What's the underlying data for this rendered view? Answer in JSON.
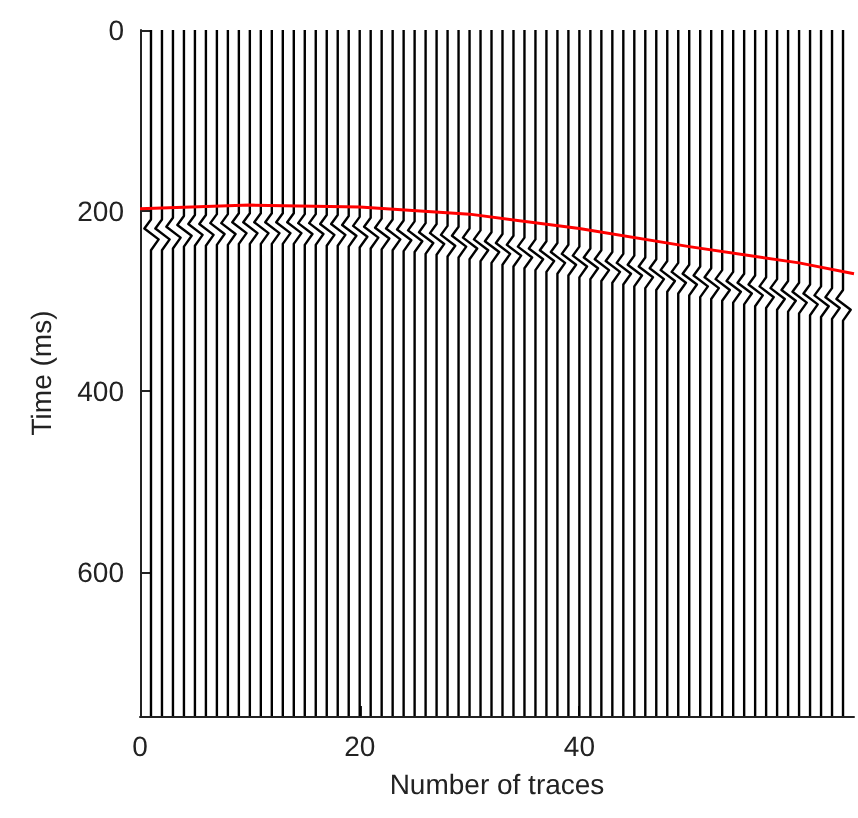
{
  "chart_data": {
    "type": "line",
    "xlabel": "Number of traces",
    "ylabel": "Time (ms)",
    "xlim": [
      0,
      65
    ],
    "xticks": [
      0,
      20,
      40
    ],
    "ylim": [
      760,
      0
    ],
    "yticks": [
      0,
      200,
      400,
      600
    ],
    "series": [
      {
        "color": "#000000",
        "x": [
          1,
          1,
          0.4,
          1.7,
          1,
          1
        ],
        "values": [
          0,
          210,
          220,
          232,
          244,
          760
        ]
      },
      {
        "color": "#000000",
        "x": [
          2,
          2,
          1.4,
          2.7,
          2,
          2
        ],
        "values": [
          0,
          210,
          220,
          232,
          244,
          760
        ]
      },
      {
        "color": "#000000",
        "x": [
          3,
          3,
          2.4,
          3.7,
          3,
          3
        ],
        "values": [
          0,
          208,
          218,
          230,
          242,
          760
        ]
      },
      {
        "color": "#000000",
        "x": [
          4,
          4,
          3.4,
          4.7,
          4,
          4
        ],
        "values": [
          0,
          206,
          216,
          228,
          240,
          760
        ]
      },
      {
        "color": "#000000",
        "x": [
          5,
          5,
          4.4,
          5.7,
          5,
          5
        ],
        "values": [
          0,
          205,
          215,
          227,
          239,
          760
        ]
      },
      {
        "color": "#000000",
        "x": [
          6,
          6,
          5.4,
          6.7,
          6,
          6
        ],
        "values": [
          0,
          205,
          215,
          227,
          239,
          760
        ]
      },
      {
        "color": "#000000",
        "x": [
          7,
          7,
          6.4,
          7.7,
          7,
          7
        ],
        "values": [
          0,
          204,
          214,
          226,
          238,
          760
        ]
      },
      {
        "color": "#000000",
        "x": [
          8,
          8,
          7.4,
          8.7,
          8,
          8
        ],
        "values": [
          0,
          204,
          214,
          226,
          238,
          760
        ]
      },
      {
        "color": "#000000",
        "x": [
          9,
          9,
          8.4,
          9.7,
          9,
          9
        ],
        "values": [
          0,
          203,
          213,
          225,
          237,
          760
        ]
      },
      {
        "color": "#000000",
        "x": [
          10,
          10,
          9.4,
          10.7,
          10,
          10
        ],
        "values": [
          0,
          203,
          213,
          225,
          237,
          760
        ]
      },
      {
        "color": "#000000",
        "x": [
          11,
          11,
          10.4,
          11.7,
          11,
          11
        ],
        "values": [
          0,
          203,
          213,
          225,
          237,
          760
        ]
      },
      {
        "color": "#000000",
        "x": [
          12,
          12,
          11.4,
          12.7,
          12,
          12
        ],
        "values": [
          0,
          203,
          213,
          225,
          237,
          760
        ]
      },
      {
        "color": "#000000",
        "x": [
          13,
          13,
          12.4,
          13.7,
          13,
          13
        ],
        "values": [
          0,
          203,
          213,
          225,
          237,
          760
        ]
      },
      {
        "color": "#000000",
        "x": [
          14,
          14,
          13.4,
          14.7,
          14,
          14
        ],
        "values": [
          0,
          203,
          213,
          225,
          237,
          760
        ]
      },
      {
        "color": "#000000",
        "x": [
          15,
          15,
          14.4,
          15.7,
          15,
          15
        ],
        "values": [
          0,
          204,
          214,
          226,
          238,
          760
        ]
      },
      {
        "color": "#000000",
        "x": [
          16,
          16,
          15.4,
          16.7,
          16,
          16
        ],
        "values": [
          0,
          204,
          214,
          226,
          238,
          760
        ]
      },
      {
        "color": "#000000",
        "x": [
          17,
          17,
          16.4,
          17.7,
          17,
          17
        ],
        "values": [
          0,
          205,
          215,
          227,
          239,
          760
        ]
      },
      {
        "color": "#000000",
        "x": [
          18,
          18,
          17.4,
          18.7,
          18,
          18
        ],
        "values": [
          0,
          205,
          215,
          227,
          239,
          760
        ]
      },
      {
        "color": "#000000",
        "x": [
          19,
          19,
          18.4,
          19.7,
          19,
          19
        ],
        "values": [
          0,
          206,
          216,
          228,
          240,
          760
        ]
      },
      {
        "color": "#000000",
        "x": [
          20,
          20,
          19.4,
          20.7,
          20,
          20
        ],
        "values": [
          0,
          207,
          217,
          229,
          241,
          760
        ]
      },
      {
        "color": "#000000",
        "x": [
          21,
          21,
          20.4,
          21.7,
          21,
          21
        ],
        "values": [
          0,
          208,
          218,
          230,
          242,
          760
        ]
      },
      {
        "color": "#000000",
        "x": [
          22,
          22,
          21.4,
          22.7,
          22,
          22
        ],
        "values": [
          0,
          209,
          219,
          231,
          243,
          760
        ]
      },
      {
        "color": "#000000",
        "x": [
          23,
          23,
          22.4,
          23.7,
          23,
          23
        ],
        "values": [
          0,
          210,
          220,
          232,
          244,
          760
        ]
      },
      {
        "color": "#000000",
        "x": [
          24,
          24,
          23.4,
          24.7,
          24,
          24
        ],
        "values": [
          0,
          211,
          221,
          233,
          245,
          760
        ]
      },
      {
        "color": "#000000",
        "x": [
          25,
          25,
          24.4,
          25.7,
          25,
          25
        ],
        "values": [
          0,
          212,
          222,
          234,
          246,
          760
        ]
      },
      {
        "color": "#000000",
        "x": [
          26,
          26,
          25.4,
          26.7,
          26,
          26
        ],
        "values": [
          0,
          214,
          224,
          236,
          248,
          760
        ]
      },
      {
        "color": "#000000",
        "x": [
          27,
          27,
          26.4,
          27.7,
          27,
          27
        ],
        "values": [
          0,
          215,
          225,
          237,
          249,
          760
        ]
      },
      {
        "color": "#000000",
        "x": [
          28,
          28,
          27.4,
          28.7,
          28,
          28
        ],
        "values": [
          0,
          217,
          227,
          239,
          251,
          760
        ]
      },
      {
        "color": "#000000",
        "x": [
          29,
          29,
          28.4,
          29.7,
          29,
          29
        ],
        "values": [
          0,
          218,
          228,
          240,
          252,
          760
        ]
      },
      {
        "color": "#000000",
        "x": [
          30,
          30,
          29.4,
          30.7,
          30,
          30
        ],
        "values": [
          0,
          220,
          230,
          242,
          254,
          760
        ]
      },
      {
        "color": "#000000",
        "x": [
          31,
          31,
          30.4,
          31.7,
          31,
          31
        ],
        "values": [
          0,
          222,
          232,
          244,
          256,
          760
        ]
      },
      {
        "color": "#000000",
        "x": [
          32,
          32,
          31.4,
          32.7,
          32,
          32
        ],
        "values": [
          0,
          224,
          234,
          246,
          258,
          760
        ]
      },
      {
        "color": "#000000",
        "x": [
          33,
          33,
          32.4,
          33.7,
          33,
          33
        ],
        "values": [
          0,
          226,
          236,
          248,
          260,
          760
        ]
      },
      {
        "color": "#000000",
        "x": [
          34,
          34,
          33.4,
          34.7,
          34,
          34
        ],
        "values": [
          0,
          228,
          238,
          250,
          262,
          760
        ]
      },
      {
        "color": "#000000",
        "x": [
          35,
          35,
          34.4,
          35.7,
          35,
          35
        ],
        "values": [
          0,
          230,
          240,
          252,
          264,
          760
        ]
      },
      {
        "color": "#000000",
        "x": [
          36,
          36,
          35.4,
          36.7,
          36,
          36
        ],
        "values": [
          0,
          232,
          242,
          254,
          266,
          760
        ]
      },
      {
        "color": "#000000",
        "x": [
          37,
          37,
          36.4,
          37.7,
          37,
          37
        ],
        "values": [
          0,
          234,
          244,
          256,
          268,
          760
        ]
      },
      {
        "color": "#000000",
        "x": [
          38,
          38,
          37.4,
          38.7,
          38,
          38
        ],
        "values": [
          0,
          236,
          246,
          258,
          270,
          760
        ]
      },
      {
        "color": "#000000",
        "x": [
          39,
          39,
          38.4,
          39.7,
          39,
          39
        ],
        "values": [
          0,
          238,
          248,
          260,
          272,
          760
        ]
      },
      {
        "color": "#000000",
        "x": [
          40,
          40,
          39.4,
          40.7,
          40,
          40
        ],
        "values": [
          0,
          240,
          250,
          262,
          274,
          760
        ]
      },
      {
        "color": "#000000",
        "x": [
          41,
          41,
          40.4,
          41.7,
          41,
          41
        ],
        "values": [
          0,
          242,
          252,
          264,
          276,
          760
        ]
      },
      {
        "color": "#000000",
        "x": [
          42,
          42,
          41.4,
          42.7,
          42,
          42
        ],
        "values": [
          0,
          244,
          254,
          266,
          278,
          760
        ]
      },
      {
        "color": "#000000",
        "x": [
          43,
          43,
          42.4,
          43.7,
          43,
          43
        ],
        "values": [
          0,
          246,
          256,
          268,
          280,
          760
        ]
      },
      {
        "color": "#000000",
        "x": [
          44,
          44,
          43.4,
          44.7,
          44,
          44
        ],
        "values": [
          0,
          248,
          258,
          270,
          282,
          760
        ]
      },
      {
        "color": "#000000",
        "x": [
          45,
          45,
          44.4,
          45.7,
          45,
          45
        ],
        "values": [
          0,
          250,
          260,
          272,
          284,
          760
        ]
      },
      {
        "color": "#000000",
        "x": [
          46,
          46,
          45.4,
          46.7,
          46,
          46
        ],
        "values": [
          0,
          252,
          262,
          274,
          286,
          760
        ]
      },
      {
        "color": "#000000",
        "x": [
          47,
          47,
          46.4,
          47.7,
          47,
          47
        ],
        "values": [
          0,
          254,
          264,
          276,
          288,
          760
        ]
      },
      {
        "color": "#000000",
        "x": [
          48,
          48,
          47.4,
          48.7,
          48,
          48
        ],
        "values": [
          0,
          256,
          266,
          278,
          290,
          760
        ]
      },
      {
        "color": "#000000",
        "x": [
          49,
          49,
          48.4,
          49.7,
          49,
          49
        ],
        "values": [
          0,
          258,
          268,
          280,
          292,
          760
        ]
      },
      {
        "color": "#000000",
        "x": [
          50,
          50,
          49.4,
          50.7,
          50,
          50
        ],
        "values": [
          0,
          260,
          270,
          282,
          294,
          760
        ]
      },
      {
        "color": "#000000",
        "x": [
          51,
          51,
          50.4,
          51.7,
          51,
          51
        ],
        "values": [
          0,
          262,
          272,
          284,
          296,
          760
        ]
      },
      {
        "color": "#000000",
        "x": [
          52,
          52,
          51.4,
          52.7,
          52,
          52
        ],
        "values": [
          0,
          264,
          274,
          286,
          298,
          760
        ]
      },
      {
        "color": "#000000",
        "x": [
          53,
          53,
          52.4,
          53.7,
          53,
          53
        ],
        "values": [
          0,
          266,
          276,
          288,
          300,
          760
        ]
      },
      {
        "color": "#000000",
        "x": [
          54,
          54,
          53.4,
          54.7,
          54,
          54
        ],
        "values": [
          0,
          268,
          278,
          290,
          302,
          760
        ]
      },
      {
        "color": "#000000",
        "x": [
          55,
          55,
          54.4,
          55.7,
          55,
          55
        ],
        "values": [
          0,
          270,
          280,
          292,
          304,
          760
        ]
      },
      {
        "color": "#000000",
        "x": [
          56,
          56,
          55.4,
          56.7,
          56,
          56
        ],
        "values": [
          0,
          272,
          282,
          294,
          306,
          760
        ]
      },
      {
        "color": "#000000",
        "x": [
          57,
          57,
          56.4,
          57.7,
          57,
          57
        ],
        "values": [
          0,
          274,
          284,
          296,
          308,
          760
        ]
      },
      {
        "color": "#000000",
        "x": [
          58,
          58,
          57.4,
          58.7,
          58,
          58
        ],
        "values": [
          0,
          276,
          286,
          298,
          310,
          760
        ]
      },
      {
        "color": "#000000",
        "x": [
          59,
          59,
          58.4,
          59.7,
          59,
          59
        ],
        "values": [
          0,
          278,
          288,
          300,
          312,
          760
        ]
      },
      {
        "color": "#000000",
        "x": [
          60,
          60,
          59.4,
          60.7,
          60,
          60
        ],
        "values": [
          0,
          280,
          290,
          302,
          314,
          760
        ]
      },
      {
        "color": "#000000",
        "x": [
          61,
          61,
          60.4,
          61.7,
          61,
          61
        ],
        "values": [
          0,
          282,
          292,
          304,
          316,
          760
        ]
      },
      {
        "color": "#000000",
        "x": [
          62,
          62,
          61.4,
          62.7,
          62,
          62
        ],
        "values": [
          0,
          284,
          294,
          306,
          318,
          760
        ]
      },
      {
        "color": "#000000",
        "x": [
          63,
          63,
          62.4,
          63.7,
          63,
          63
        ],
        "values": [
          0,
          286,
          296,
          308,
          320,
          760
        ]
      },
      {
        "color": "#000000",
        "x": [
          64,
          64,
          63.4,
          64.7,
          64,
          64
        ],
        "values": [
          0,
          288,
          298,
          310,
          322,
          760
        ]
      },
      {
        "color": "#ff0000",
        "x": [
          0,
          10,
          20,
          30,
          40,
          50,
          60,
          65
        ],
        "values": [
          198,
          194,
          196,
          204,
          220,
          240,
          258,
          270
        ]
      }
    ]
  }
}
